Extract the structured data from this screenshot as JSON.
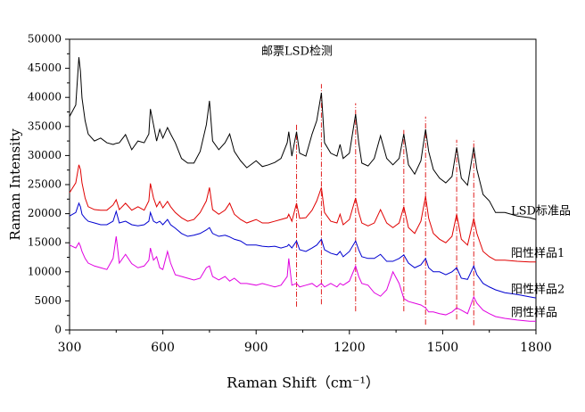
{
  "chart_data": {
    "type": "line",
    "title": "邮票LSD检测",
    "xlabel": "Raman Shift（cm⁻¹）",
    "ylabel": "Raman Intensity",
    "xlim": [
      300,
      1800
    ],
    "xticks": [
      300,
      600,
      900,
      1200,
      1500,
      1800
    ],
    "ylim": [
      0,
      50000
    ],
    "yticks": [
      0,
      5000,
      10000,
      15000,
      20000,
      25000,
      30000,
      35000,
      40000,
      45000,
      50000
    ],
    "x": [
      300,
      320,
      330,
      335,
      340,
      350,
      360,
      380,
      400,
      420,
      440,
      450,
      460,
      480,
      500,
      520,
      540,
      555,
      560,
      570,
      580,
      590,
      600,
      615,
      625,
      640,
      660,
      680,
      700,
      720,
      740,
      750,
      760,
      780,
      800,
      815,
      830,
      850,
      870,
      900,
      920,
      940,
      960,
      980,
      1000,
      1005,
      1015,
      1030,
      1040,
      1060,
      1080,
      1095,
      1110,
      1120,
      1140,
      1160,
      1170,
      1180,
      1200,
      1220,
      1230,
      1240,
      1260,
      1280,
      1300,
      1320,
      1340,
      1360,
      1375,
      1390,
      1410,
      1430,
      1445,
      1455,
      1470,
      1490,
      1510,
      1530,
      1545,
      1560,
      1580,
      1600,
      1610,
      1630,
      1650,
      1670,
      1700,
      1740,
      1780,
      1800
    ],
    "series": [
      {
        "name": "LSD标准品",
        "color": "#000000",
        "values": [
          36700,
          38700,
          46900,
          44500,
          39900,
          36000,
          33700,
          32500,
          33000,
          32200,
          31900,
          32100,
          32200,
          33600,
          31000,
          32500,
          32200,
          33700,
          38000,
          35300,
          32500,
          34500,
          33000,
          34800,
          33700,
          32200,
          29500,
          28700,
          28700,
          30700,
          35300,
          39400,
          32500,
          31000,
          32200,
          33700,
          30700,
          29100,
          27900,
          29100,
          28100,
          28400,
          28800,
          29500,
          32200,
          34100,
          29900,
          34100,
          30400,
          29900,
          33700,
          36000,
          40800,
          32200,
          30400,
          29900,
          31900,
          29500,
          30400,
          37100,
          32200,
          28700,
          28200,
          29500,
          33400,
          29500,
          28400,
          29500,
          33700,
          28400,
          26800,
          29100,
          34500,
          30700,
          27600,
          26100,
          25300,
          26400,
          31400,
          26100,
          24900,
          31400,
          27600,
          23300,
          22200,
          20200,
          20200,
          19600,
          19300,
          19000
        ]
      },
      {
        "name": "阳性样品1",
        "color": "#e00000",
        "values": [
          23600,
          25300,
          28400,
          27600,
          25300,
          22700,
          21200,
          20700,
          20600,
          20600,
          21500,
          22400,
          20700,
          21800,
          20600,
          21200,
          20600,
          22200,
          25200,
          22700,
          21200,
          22100,
          21000,
          22100,
          21200,
          20200,
          19300,
          18700,
          19000,
          20200,
          22200,
          24500,
          20700,
          19900,
          20600,
          21800,
          19900,
          19000,
          18400,
          19000,
          18400,
          18400,
          18700,
          19000,
          19300,
          19900,
          18700,
          21800,
          19200,
          19300,
          20600,
          22200,
          24500,
          20200,
          18700,
          18400,
          19900,
          18100,
          19000,
          22700,
          20200,
          18400,
          17900,
          18400,
          20700,
          18400,
          17600,
          18400,
          21200,
          17600,
          16600,
          18700,
          23000,
          19200,
          16600,
          15600,
          15000,
          16100,
          19900,
          15600,
          14600,
          19200,
          16600,
          13500,
          12600,
          12000,
          12000,
          11800,
          11700,
          11700
        ]
      },
      {
        "name": "阳性样品2",
        "color": "#0000d0",
        "values": [
          19600,
          20200,
          21800,
          21200,
          19900,
          19200,
          18700,
          18400,
          18100,
          18100,
          18700,
          20400,
          18400,
          18700,
          18100,
          17900,
          18100,
          18700,
          20200,
          18700,
          18400,
          18700,
          18100,
          19000,
          18100,
          17500,
          16600,
          16100,
          16300,
          16600,
          17200,
          17600,
          16600,
          16100,
          16300,
          16000,
          15600,
          15300,
          14600,
          14600,
          14400,
          14300,
          14400,
          14100,
          14400,
          14700,
          14100,
          15300,
          13800,
          13500,
          14100,
          14600,
          15600,
          13800,
          13200,
          12900,
          13500,
          12600,
          13500,
          15300,
          13800,
          12600,
          12300,
          12300,
          13000,
          11800,
          11800,
          12300,
          12900,
          11500,
          10700,
          11200,
          12300,
          10700,
          10000,
          10000,
          9500,
          10000,
          10700,
          8900,
          8700,
          11000,
          9500,
          8000,
          7400,
          6900,
          6400,
          6100,
          5700,
          5500
        ]
      },
      {
        "name": "阴性样品",
        "color": "#e000e0",
        "values": [
          14600,
          14100,
          15000,
          14400,
          13500,
          12300,
          11500,
          11000,
          10700,
          10400,
          12300,
          16100,
          11500,
          13000,
          11400,
          10700,
          11000,
          12000,
          14100,
          12000,
          12600,
          10700,
          10400,
          13500,
          11500,
          9500,
          9200,
          8900,
          8600,
          8900,
          10700,
          11000,
          9200,
          8600,
          9200,
          8400,
          8900,
          8000,
          8000,
          7700,
          8000,
          7700,
          7400,
          7700,
          9200,
          12300,
          7700,
          8000,
          7400,
          7700,
          8000,
          7400,
          8000,
          7400,
          8000,
          7400,
          8000,
          7700,
          8400,
          11000,
          9200,
          8000,
          7700,
          6400,
          5800,
          6900,
          10000,
          8000,
          5400,
          4900,
          4600,
          4300,
          3800,
          3100,
          3100,
          2800,
          2600,
          3100,
          3800,
          3400,
          2800,
          5700,
          4600,
          3400,
          2800,
          2300,
          2000,
          1700,
          1500,
          1500
        ]
      }
    ],
    "reference_lines": [
      {
        "x": 1030,
        "y": [
          4000,
          35400
        ]
      },
      {
        "x": 1110,
        "y": [
          4400,
          42300
        ]
      },
      {
        "x": 1220,
        "y": [
          3200,
          39000
        ]
      },
      {
        "x": 1375,
        "y": [
          3200,
          34400
        ]
      },
      {
        "x": 1445,
        "y": [
          900,
          36700
        ]
      },
      {
        "x": 1545,
        "y": [
          1800,
          32700
        ]
      },
      {
        "x": 1600,
        "y": [
          800,
          32700
        ]
      }
    ],
    "reference_color": "#e02020"
  }
}
